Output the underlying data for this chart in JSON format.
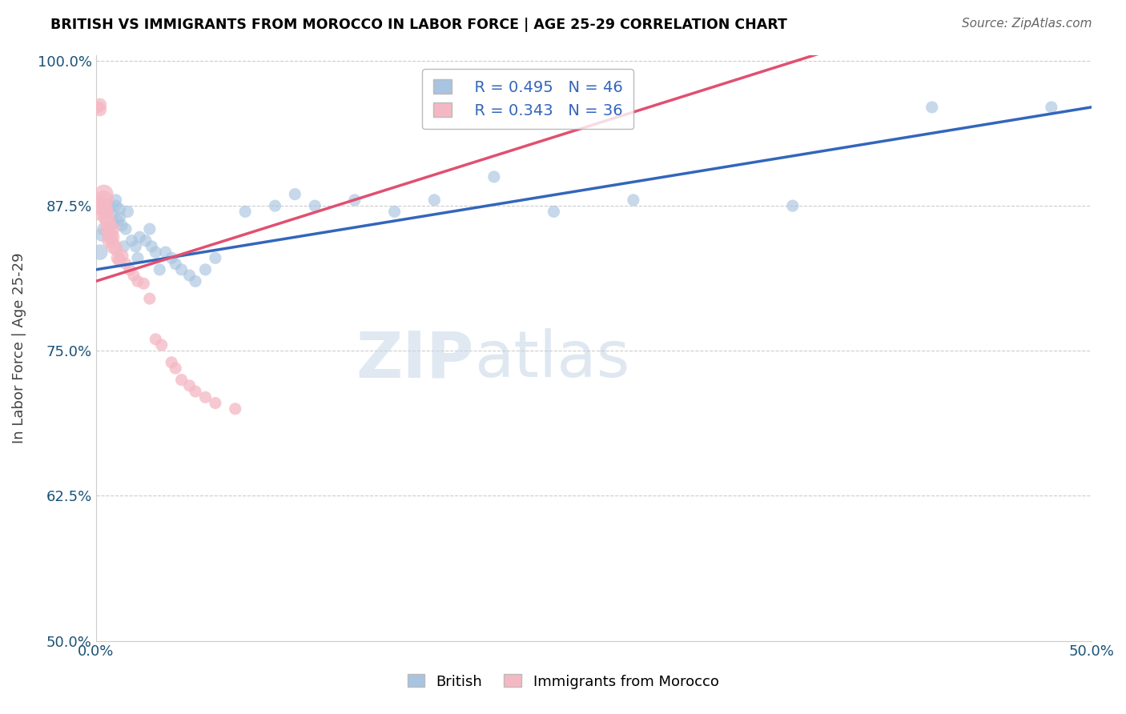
{
  "title": "BRITISH VS IMMIGRANTS FROM MOROCCO IN LABOR FORCE | AGE 25-29 CORRELATION CHART",
  "source": "Source: ZipAtlas.com",
  "ylabel": "In Labor Force | Age 25-29",
  "xlim": [
    0.0,
    0.5
  ],
  "ylim": [
    0.5,
    1.005
  ],
  "xticks": [
    0.0,
    0.1,
    0.2,
    0.3,
    0.4,
    0.5
  ],
  "xticklabels": [
    "0.0%",
    "",
    "",
    "",
    "",
    "50.0%"
  ],
  "yticks": [
    0.5,
    0.625,
    0.75,
    0.875,
    1.0
  ],
  "yticklabels": [
    "50.0%",
    "62.5%",
    "75.0%",
    "87.5%",
    "100.0%"
  ],
  "blue_R": "0.495",
  "blue_N": "46",
  "pink_R": "0.343",
  "pink_N": "36",
  "blue_color": "#a8c4e0",
  "pink_color": "#f4b8c4",
  "blue_line_color": "#3366bb",
  "pink_line_color": "#e05070",
  "blue_scatter_edge": "#8aaecc",
  "pink_scatter_edge": "#e090a0",
  "british_x": [
    0.002,
    0.003,
    0.004,
    0.006,
    0.007,
    0.008,
    0.009,
    0.01,
    0.01,
    0.011,
    0.012,
    0.012,
    0.013,
    0.014,
    0.015,
    0.016,
    0.018,
    0.02,
    0.021,
    0.022,
    0.025,
    0.027,
    0.028,
    0.03,
    0.032,
    0.035,
    0.038,
    0.04,
    0.043,
    0.047,
    0.05,
    0.055,
    0.06,
    0.075,
    0.09,
    0.1,
    0.11,
    0.13,
    0.15,
    0.17,
    0.2,
    0.23,
    0.27,
    0.35,
    0.42,
    0.48
  ],
  "british_y": [
    0.835,
    0.85,
    0.855,
    0.87,
    0.875,
    0.868,
    0.86,
    0.875,
    0.88,
    0.862,
    0.872,
    0.865,
    0.858,
    0.84,
    0.855,
    0.87,
    0.845,
    0.84,
    0.83,
    0.848,
    0.845,
    0.855,
    0.84,
    0.835,
    0.82,
    0.835,
    0.83,
    0.825,
    0.82,
    0.815,
    0.81,
    0.82,
    0.83,
    0.87,
    0.875,
    0.885,
    0.875,
    0.88,
    0.87,
    0.88,
    0.9,
    0.87,
    0.88,
    0.875,
    0.96,
    0.96
  ],
  "british_size": [
    200,
    150,
    150,
    120,
    120,
    120,
    120,
    120,
    120,
    120,
    120,
    120,
    120,
    120,
    120,
    120,
    120,
    120,
    120,
    120,
    120,
    120,
    120,
    120,
    120,
    120,
    120,
    120,
    120,
    120,
    120,
    120,
    120,
    120,
    120,
    120,
    120,
    120,
    120,
    120,
    120,
    120,
    120,
    120,
    120,
    120
  ],
  "morocco_x": [
    0.001,
    0.002,
    0.002,
    0.003,
    0.003,
    0.004,
    0.004,
    0.005,
    0.005,
    0.006,
    0.006,
    0.007,
    0.007,
    0.008,
    0.008,
    0.009,
    0.01,
    0.011,
    0.012,
    0.013,
    0.015,
    0.017,
    0.019,
    0.021,
    0.024,
    0.027,
    0.03,
    0.033,
    0.038,
    0.04,
    0.043,
    0.047,
    0.05,
    0.055,
    0.06,
    0.07
  ],
  "morocco_y": [
    0.96,
    0.958,
    0.962,
    0.87,
    0.875,
    0.88,
    0.885,
    0.865,
    0.87,
    0.855,
    0.862,
    0.845,
    0.85,
    0.848,
    0.855,
    0.84,
    0.838,
    0.83,
    0.828,
    0.832,
    0.825,
    0.82,
    0.815,
    0.81,
    0.808,
    0.795,
    0.76,
    0.755,
    0.74,
    0.735,
    0.725,
    0.72,
    0.715,
    0.71,
    0.705,
    0.7
  ],
  "morocco_size": [
    120,
    150,
    150,
    300,
    300,
    300,
    300,
    200,
    200,
    200,
    200,
    200,
    200,
    200,
    200,
    200,
    150,
    150,
    150,
    150,
    120,
    120,
    120,
    120,
    120,
    120,
    120,
    120,
    120,
    120,
    120,
    120,
    120,
    120,
    120,
    120
  ]
}
